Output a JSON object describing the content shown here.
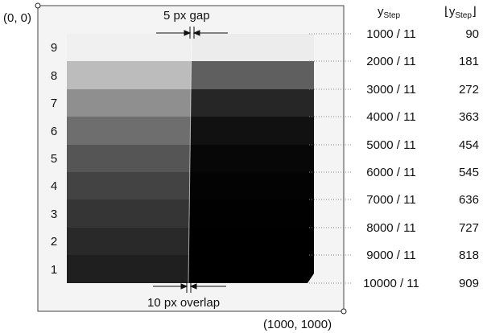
{
  "corners": {
    "top_left": "(0, 0)",
    "bottom_right": "(1000, 1000)"
  },
  "annotations": {
    "gap": "5 px gap",
    "overlap": "10 px overlap"
  },
  "headers": {
    "y_step": {
      "base": "y",
      "sub": "Step"
    },
    "y_step_floor": {
      "open": "⌊y",
      "sub": "Step",
      "close": "⌋"
    }
  },
  "row_labels": [
    "1",
    "2",
    "3",
    "4",
    "5",
    "6",
    "7",
    "8",
    "9"
  ],
  "steps": [
    {
      "fraction": "1000 / 11",
      "floor": "90"
    },
    {
      "fraction": "2000 / 11",
      "floor": "181"
    },
    {
      "fraction": "3000 / 11",
      "floor": "272"
    },
    {
      "fraction": "4000 / 11",
      "floor": "363"
    },
    {
      "fraction": "5000 / 11",
      "floor": "454"
    },
    {
      "fraction": "6000 / 11",
      "floor": "545"
    },
    {
      "fraction": "7000 / 11",
      "floor": "636"
    },
    {
      "fraction": "8000 / 11",
      "floor": "727"
    },
    {
      "fraction": "9000 / 11",
      "floor": "818"
    },
    {
      "fraction": "10000 / 11",
      "floor": "909"
    }
  ],
  "colors": {
    "canvas_bg": "#f4f4f4",
    "canvas_border": "#444444",
    "left_bands_top_to_bottom": [
      "#f0f0f0",
      "#bcbcbc",
      "#8f8f8f",
      "#6e6e6e",
      "#555555",
      "#434343",
      "#353535",
      "#292929",
      "#1f1f1f"
    ],
    "right_bands_top_to_bottom": [
      "#ececec",
      "#5f5f5f",
      "#262626",
      "#111111",
      "#070707",
      "#030303",
      "#010101",
      "#000000",
      "#000000"
    ]
  }
}
